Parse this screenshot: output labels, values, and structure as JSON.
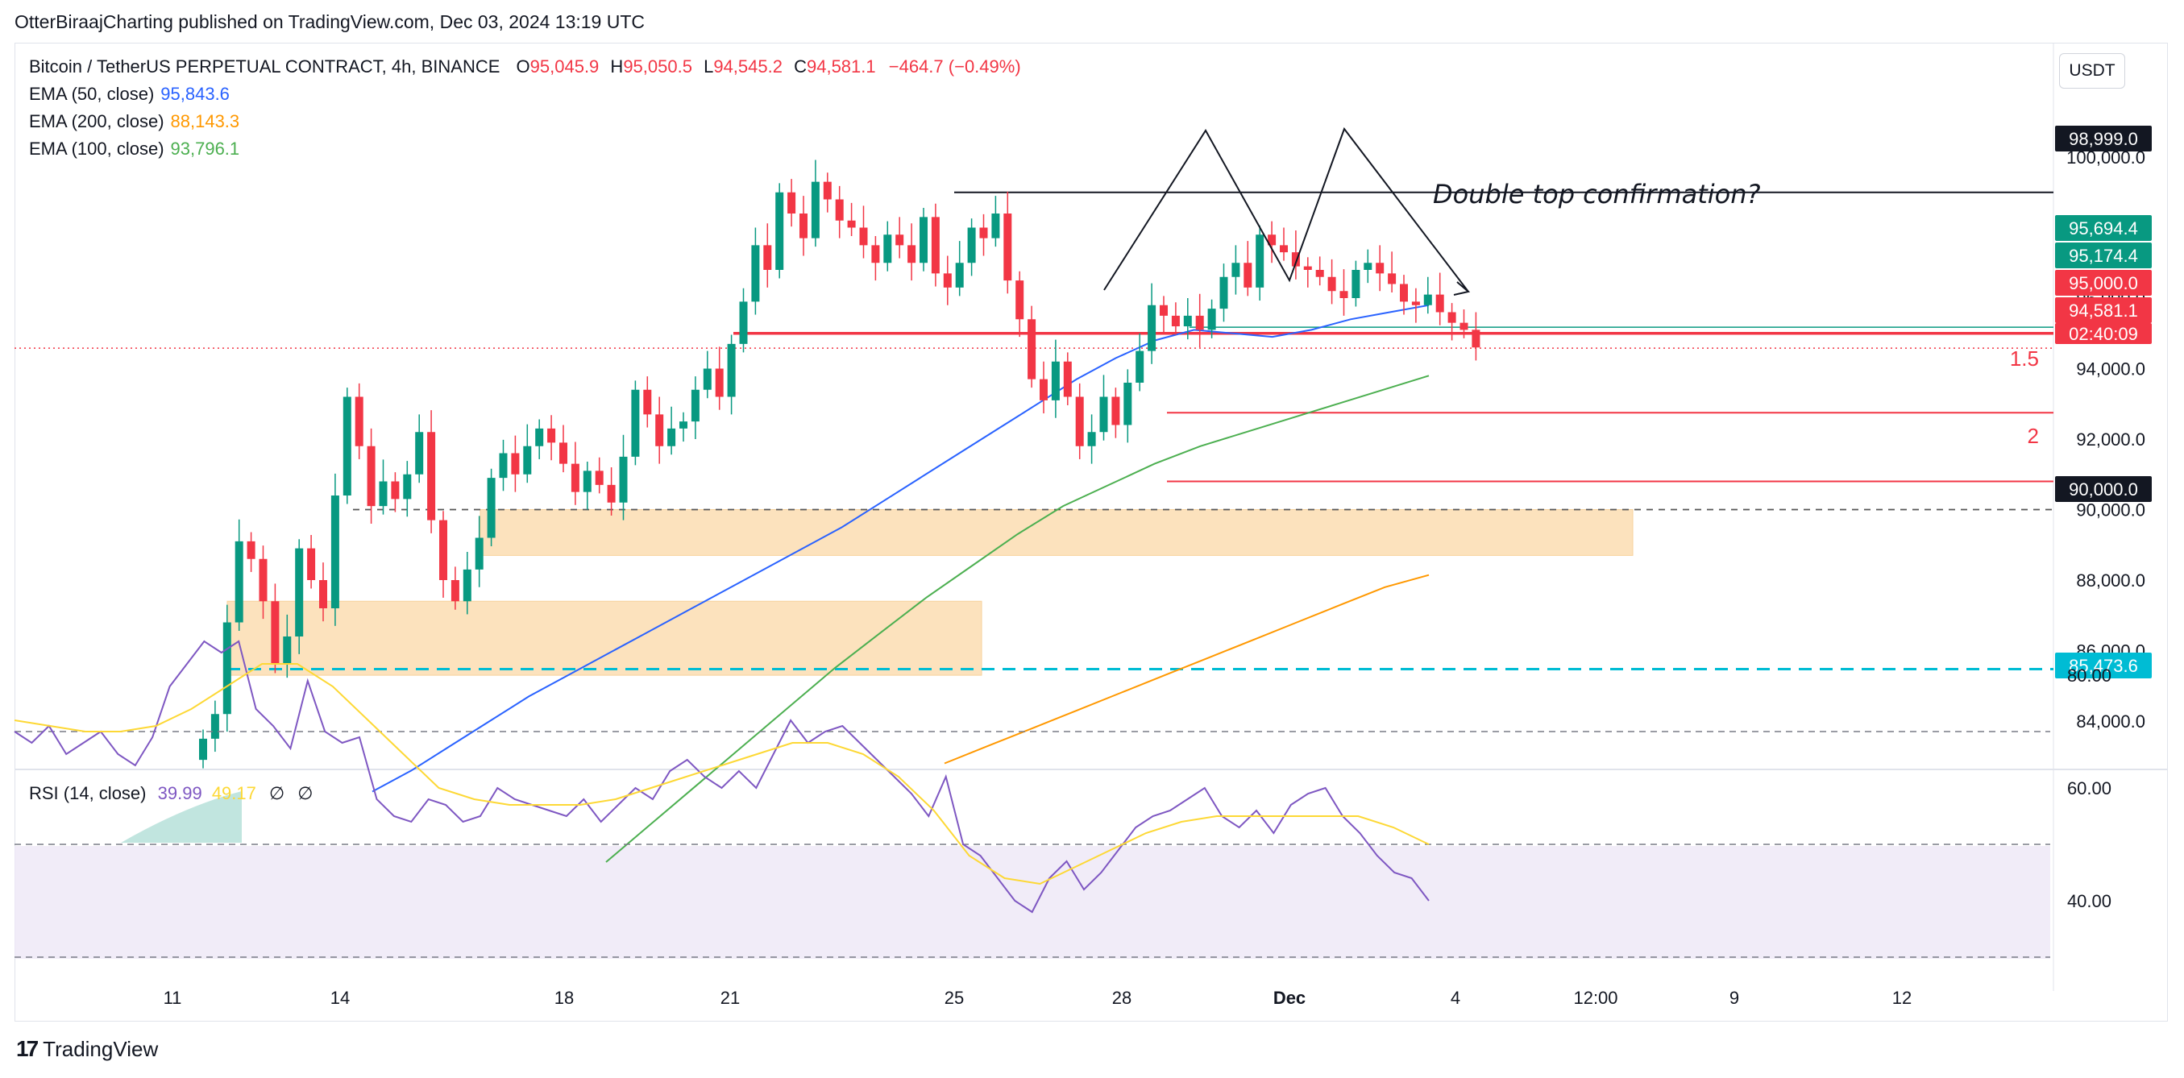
{
  "header": {
    "publisher_line": "OtterBiraajCharting published on TradingView.com, Dec 03, 2024 13:19 UTC"
  },
  "legend": {
    "symbol": "Bitcoin / TetherUS PERPETUAL CONTRACT, 4h, BINANCE",
    "o_label": "O",
    "o_value": "95,045.9",
    "h_label": "H",
    "h_value": "95,050.5",
    "l_label": "L",
    "l_value": "94,545.2",
    "c_label": "C",
    "c_value": "94,581.1",
    "change": "−464.7 (−0.49%)",
    "ema50_label": "EMA (50, close)",
    "ema50_value": "95,843.6",
    "ema200_label": "EMA (200, close)",
    "ema200_value": "88,143.3",
    "ema100_label": "EMA (100, close)",
    "ema100_value": "93,796.1"
  },
  "unit_button": "USDT",
  "rsi_legend": {
    "label": "RSI (14, close)",
    "rsi_value": "39.99",
    "ma_value": "49.17",
    "extra1": "∅",
    "extra2": "∅"
  },
  "annotations": {
    "double_top": "Double top confirmation?",
    "fib_15": "1.5",
    "fib_2": "2"
  },
  "brand": {
    "name": "TradingView"
  },
  "colors": {
    "up": "#089981",
    "down": "#f23645",
    "ema50": "#2962ff",
    "ema100": "#4caf50",
    "ema200": "#ff9800",
    "rsi": "#7e57c2",
    "rsi_ma": "#fdd835",
    "zone": "#fcd9a8",
    "support": "#00bcd4"
  },
  "chart_data": [
    {
      "type": "candlestick",
      "timeframe": "4h",
      "x_ticks": [
        "11",
        "14",
        "18",
        "21",
        "25",
        "28",
        "Dec",
        "4",
        "12:00",
        "9",
        "12"
      ],
      "y_ticks": [
        "84,000.0",
        "86,000.0",
        "88,000.0",
        "90,000.0",
        "92,000.0",
        "94,000.0",
        "96,000.0",
        "98,000.0",
        "100,000.0"
      ],
      "ylim": [
        82800,
        100400
      ],
      "price_labels": [
        {
          "text": "98,999.0",
          "value": 98999,
          "color": "#131722"
        },
        {
          "text": "95,694.4",
          "value": 95694.4,
          "color": "#089981"
        },
        {
          "text": "95,174.4",
          "value": 95174.4,
          "color": "#089981"
        },
        {
          "text": "95,000.0",
          "value": 95000,
          "color": "#f23645"
        },
        {
          "text": "94,581.1",
          "value": 94581.1,
          "color": "#f23645"
        },
        {
          "text": "02:40:09",
          "value": 94581.1,
          "color": "#f23645"
        },
        {
          "text": "90,000.0",
          "value": 90000,
          "color": "#131722"
        },
        {
          "text": "85,473.6",
          "value": 85473.6,
          "color": "#00bcd4"
        }
      ],
      "horizontal_levels": [
        {
          "name": "top",
          "value": 98999
        },
        {
          "name": "green-upper",
          "value": 95174.4
        },
        {
          "name": "green-lower",
          "value": 95000
        },
        {
          "name": "red-resistance",
          "value": 95000
        },
        {
          "name": "fib-1.5",
          "value": 92750
        },
        {
          "name": "fib-2",
          "value": 90800
        },
        {
          "name": "round-90000",
          "value": 90000
        },
        {
          "name": "support",
          "value": 85473.6
        }
      ],
      "zones": [
        {
          "name": "zone-upper",
          "from": 88700,
          "to": 90000
        },
        {
          "name": "zone-lower",
          "from": 85300,
          "to": 87400
        }
      ],
      "closes": [
        83500,
        84200,
        86800,
        89100,
        88600,
        87400,
        85600,
        86400,
        88900,
        88000,
        87200,
        90400,
        93200,
        91800,
        90100,
        90800,
        90300,
        91000,
        92200,
        89700,
        88000,
        87400,
        88300,
        89200,
        90900,
        91600,
        91000,
        91800,
        92300,
        91900,
        91300,
        90500,
        91100,
        90700,
        90200,
        91500,
        93400,
        92700,
        91800,
        92300,
        92500,
        93400,
        94000,
        93200,
        94700,
        95900,
        97500,
        96800,
        99000,
        98400,
        97700,
        99300,
        98800,
        98200,
        98000,
        97500,
        97000,
        97800,
        97500,
        97000,
        98300,
        96700,
        96300,
        97000,
        98000,
        97700,
        98400,
        96500,
        95400,
        93700,
        93100,
        94200,
        93200,
        91800,
        92200,
        93200,
        92400,
        93600,
        94500,
        95800,
        95500,
        95200,
        95500,
        95100,
        95700,
        96600,
        97000,
        96300,
        97800,
        97500,
        97300,
        96900,
        96800,
        96600,
        96200,
        96000,
        96800,
        97000,
        96700,
        96400,
        95900,
        95800,
        96100,
        95600,
        95300,
        95100,
        94600
      ],
      "ema50": [
        82000,
        82600,
        83300,
        84000,
        84700,
        85300,
        85900,
        86500,
        87100,
        87700,
        88300,
        88900,
        89500,
        90200,
        90900,
        91600,
        92300,
        93000,
        93700,
        94300,
        94800,
        95100,
        95000,
        94900,
        95100,
        95400,
        95600,
        95800
      ],
      "ema100": [
        80000,
        81100,
        82200,
        83300,
        84400,
        85500,
        86500,
        87500,
        88400,
        89300,
        90100,
        90700,
        91300,
        91800,
        92200,
        92600,
        93000,
        93400,
        93800
      ],
      "ema200": [
        82800,
        83300,
        83800,
        84300,
        84800,
        85300,
        85800,
        86300,
        86800,
        87300,
        87800,
        88143
      ]
    },
    {
      "type": "line",
      "name": "RSI (14, close)",
      "y_ticks": [
        "40.00",
        "60.00",
        "80.00"
      ],
      "ylim": [
        30,
        90
      ],
      "levels": [
        70,
        50,
        30
      ],
      "series": [
        {
          "name": "RSI",
          "values": [
            70,
            68,
            71,
            66,
            68,
            70,
            66,
            64,
            69,
            78,
            82,
            86,
            84,
            86,
            74,
            71,
            67,
            79,
            70,
            68,
            69,
            58,
            55,
            54,
            58,
            57,
            54,
            55,
            60,
            58,
            57,
            56,
            55,
            58,
            54,
            57,
            60,
            58,
            63,
            65,
            62,
            60,
            63,
            60,
            66,
            72,
            68,
            70,
            71,
            68,
            65,
            62,
            59,
            55,
            62,
            50,
            48,
            44,
            40,
            38,
            44,
            47,
            42,
            45,
            49,
            53,
            55,
            56,
            58,
            60,
            55,
            53,
            56,
            52,
            57,
            59,
            60,
            55,
            52,
            48,
            45,
            44,
            40
          ]
        },
        {
          "name": "RSI MA",
          "values": [
            72,
            71,
            70,
            70,
            71,
            74,
            78,
            82,
            82,
            78,
            72,
            66,
            60,
            58,
            57,
            57,
            57,
            58,
            60,
            62,
            64,
            66,
            68,
            68,
            66,
            62,
            56,
            48,
            44,
            43,
            46,
            49,
            52,
            54,
            55,
            55,
            55,
            55,
            55,
            53,
            50
          ]
        }
      ]
    }
  ]
}
